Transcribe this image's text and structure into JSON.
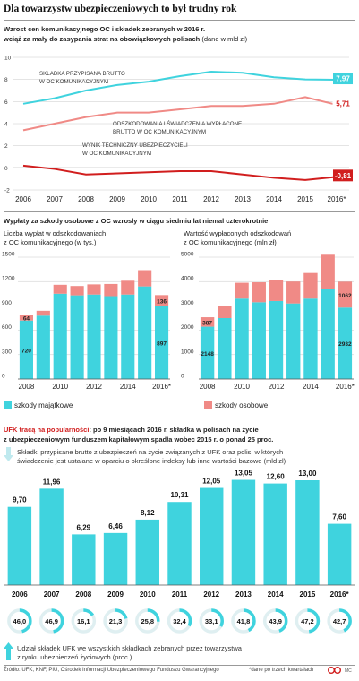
{
  "title": "Dla towarzystw ubezpieczeniowych to był trudny rok",
  "colors": {
    "teal": "#3fd3de",
    "salmon": "#f08a86",
    "red": "#d11e1e",
    "grid": "#c8c8c8",
    "darkgreen": "#1d9b5a"
  },
  "section1": {
    "heading_line1": "Wzrost cen komunikacyjnego OC i składek zebranych w 2016 r.",
    "heading_line2_bold": "wciąż za mały do zasypania strat na obowiązkowych polisach",
    "heading_line2_unit": " (dane w mld zł)"
  },
  "section2": {
    "heading": "Wypłaty za szkody osobowe z OC wzrosły w ciągu siedmiu lat niemal czterokrotnie",
    "left_sub1": "Liczba wypłat w odszkodowaniach",
    "left_sub2": "z OC komunikacyjnego (w tys.)",
    "right_sub1": "Wartość wypłaconych odszkodowań",
    "right_sub2": "z OC komunikacyjnego (mln zł)"
  },
  "section3": {
    "heading_red": "UFK tracą na popularności",
    "heading_rest1": ": po 9 miesiącach 2016 r. składka w polisach na życie",
    "heading_rest2": "z ubezpieczeniowym funduszem kapitałowym spadła wobec 2015 r. o ponad 25 proc.",
    "desc1": "Składki przypisane brutto z ubezpieczeń na życie związanych z UFK oraz polis, w których",
    "desc2": "świadczenie jest ustalane w oparciu o określone indeksy lub inne wartości bazowe (mld zł)",
    "share1": "Udział składek UFK we wszystkich składkach zebranych przez towarzystwa",
    "share2": "z rynku ubezpieczeń życiowych (proc.)"
  },
  "footer": {
    "source": "Źródło: UFK, KNF, PIU, Ośrodek Informacji Ubezpieczeniowego Funduszu Gwarancyjnego",
    "note": "*dane po trzech kwartałach",
    "badge": "MC"
  },
  "chart_data": [
    {
      "type": "line",
      "x": [
        "2006",
        "2007",
        "2008",
        "2009",
        "2010",
        "2011",
        "2012",
        "2013",
        "2014",
        "2015",
        "2016*"
      ],
      "ylim": [
        -2,
        10
      ],
      "yticks": [
        "10",
        "8",
        "6",
        "4",
        "2",
        "0",
        "-2"
      ],
      "series": [
        {
          "name": "SKŁADKA PRZYPISANA BRUTTO W OC KOMUNIKACYJNYM",
          "values": [
            5.8,
            6.3,
            7.0,
            7.5,
            7.8,
            8.3,
            8.7,
            8.6,
            8.2,
            8.0,
            7.97
          ],
          "end_label": "7,97"
        },
        {
          "name": "ODSZKODOWANIA I ŚWIADCZENIA WYPŁACONE BRUTTO W OC KOMUNIKACYJNYM",
          "values": [
            3.4,
            4.0,
            4.6,
            5.0,
            5.0,
            5.3,
            5.6,
            5.6,
            5.8,
            6.4,
            5.71
          ],
          "end_label": "5,71"
        },
        {
          "name": "WYNIK TECHNICZNY UBEZPIECZYCIELI W OC KOMUNIKACYJNYM",
          "values": [
            0.2,
            -0.1,
            -0.6,
            -0.5,
            -0.4,
            -0.3,
            -0.3,
            -0.6,
            -0.9,
            -1.1,
            -0.81
          ],
          "end_label": "-0,81"
        }
      ]
    },
    {
      "type": "bar",
      "categories": [
        "2008",
        "2009",
        "2010",
        "2011",
        "2012",
        "2013",
        "2014",
        "2015",
        "2016*"
      ],
      "xticks": [
        "2008",
        "2010",
        "2012",
        "2014",
        "2016*"
      ],
      "ylim": [
        0,
        1500
      ],
      "yticks": [
        "1500",
        "1200",
        "900",
        "600",
        "300",
        "0"
      ],
      "series": [
        {
          "name": "szkody majątkowe",
          "values": [
            720,
            780,
            1050,
            1030,
            1040,
            1020,
            1040,
            1140,
            897
          ]
        },
        {
          "name": "szkody osobowe",
          "values": [
            64,
            60,
            110,
            115,
            125,
            150,
            170,
            200,
            136
          ]
        }
      ],
      "data_labels": {
        "first_majatkowe": "720",
        "first_osobowe": "64",
        "last_majatkowe": "897",
        "last_osobowe": "136"
      }
    },
    {
      "type": "bar",
      "categories": [
        "2008",
        "2009",
        "2010",
        "2011",
        "2012",
        "2013",
        "2014",
        "2015",
        "2016*"
      ],
      "xticks": [
        "2008",
        "2010",
        "2012",
        "2014",
        "2016*"
      ],
      "ylim": [
        0,
        5000
      ],
      "yticks": [
        "5000",
        "4000",
        "3000",
        "2000",
        "1000",
        "0"
      ],
      "series": [
        {
          "name": "szkody majątkowe",
          "values": [
            2148,
            2500,
            3300,
            3150,
            3200,
            3100,
            3300,
            3700,
            2932
          ]
        },
        {
          "name": "szkody osobowe",
          "values": [
            387,
            480,
            650,
            820,
            850,
            900,
            1050,
            1400,
            1062
          ]
        }
      ],
      "data_labels": {
        "first_majatkowe": "2148",
        "first_osobowe": "387",
        "last_majatkowe": "2932",
        "last_osobowe": "1062"
      }
    },
    {
      "type": "bar",
      "categories": [
        "2006",
        "2007",
        "2008",
        "2009",
        "2010",
        "2011",
        "2012",
        "2013",
        "2014",
        "2015",
        "2016*"
      ],
      "values": [
        9.7,
        11.96,
        6.29,
        6.46,
        8.12,
        10.31,
        12.05,
        13.05,
        12.6,
        13.0,
        7.6
      ],
      "value_labels": [
        "9,70",
        "11,96",
        "6,29",
        "6,46",
        "8,12",
        "10,31",
        "12,05",
        "13,05",
        "12,60",
        "13,00",
        "7,60"
      ],
      "ylim": [
        0,
        14
      ],
      "share_percent": [
        46.0,
        46.9,
        16.1,
        21.3,
        25.8,
        32.4,
        33.1,
        41.8,
        43.9,
        47.2,
        42.7
      ],
      "share_labels": [
        "46,0",
        "46,9",
        "16,1",
        "21,3",
        "25,8",
        "32,4",
        "33,1",
        "41,8",
        "43,9",
        "47,2",
        "42,7"
      ]
    }
  ]
}
